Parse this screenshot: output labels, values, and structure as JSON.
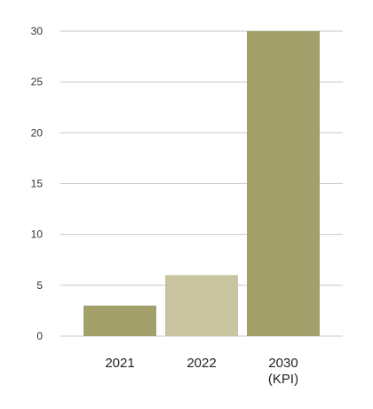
{
  "chart_data": {
    "type": "bar",
    "title": "",
    "xlabel": "",
    "ylabel": "",
    "ylim": [
      0,
      30
    ],
    "yticks": [
      0,
      5,
      10,
      15,
      20,
      25,
      30
    ],
    "grid": true,
    "legend": "none",
    "categories": [
      {
        "line1": "2021",
        "line2": ""
      },
      {
        "line1": "2022",
        "line2": ""
      },
      {
        "line1": "2030",
        "line2": "(KPI)"
      }
    ],
    "values": [
      3,
      6,
      30
    ],
    "colors": [
      "#a3a06b",
      "#c7c49f",
      "#a3a06b"
    ]
  }
}
